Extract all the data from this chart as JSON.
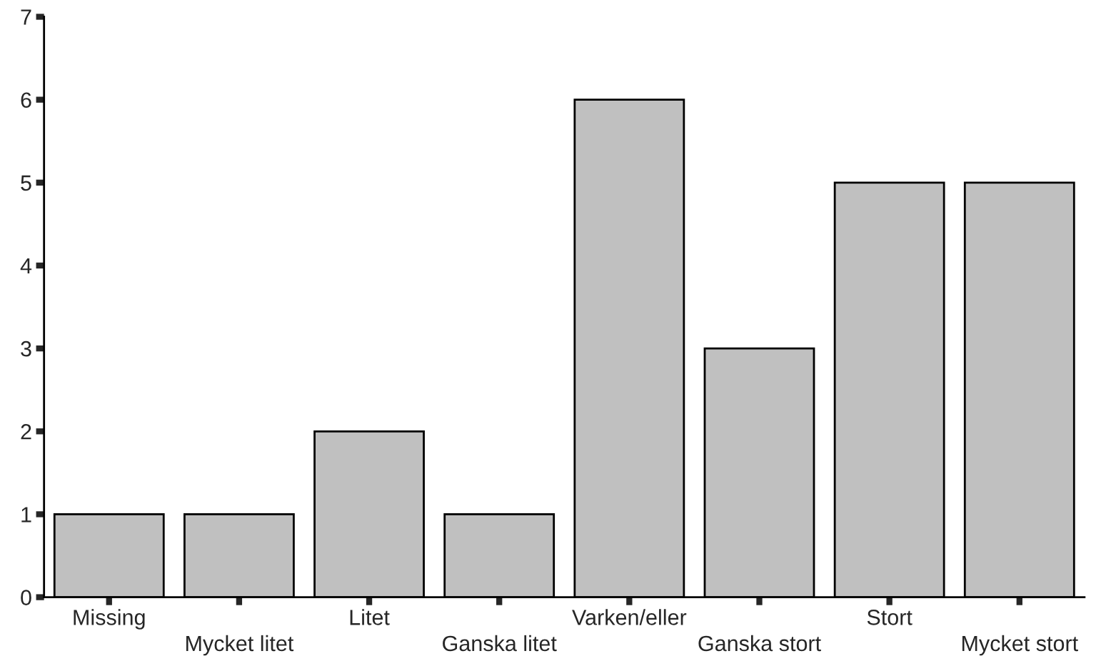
{
  "chart_data": {
    "type": "bar",
    "categories": [
      "Missing",
      "Mycket litet",
      "Litet",
      "Ganska litet",
      "Varken/eller",
      "Ganska stort",
      "Stort",
      "Mycket stort"
    ],
    "values": [
      1,
      1,
      2,
      1,
      6,
      3,
      5,
      5
    ],
    "color": "#c0c0c0",
    "ylim": [
      0,
      7
    ],
    "yticks": [
      0,
      1,
      2,
      3,
      4,
      5,
      6,
      7
    ],
    "grid": false,
    "legend": false
  }
}
